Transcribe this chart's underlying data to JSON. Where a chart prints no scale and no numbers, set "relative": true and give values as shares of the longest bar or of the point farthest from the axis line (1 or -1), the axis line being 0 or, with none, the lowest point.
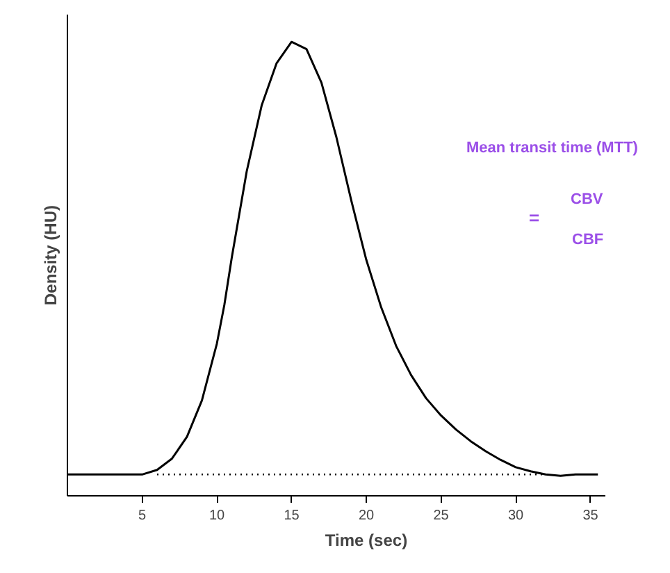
{
  "chart_data": {
    "type": "line",
    "relative": true,
    "xlabel": "Time (sec)",
    "ylabel": "Density (HU)",
    "xlim": [
      0,
      36
    ],
    "xticks": [
      5,
      10,
      15,
      20,
      25,
      30,
      35
    ],
    "annotations": [
      "Mean transit time (MTT)",
      "=",
      "CBV",
      "CBF"
    ],
    "series": [
      {
        "color": "#000000",
        "x": [
          0,
          5,
          6,
          7,
          8,
          9,
          10,
          10.5,
          11,
          12,
          13,
          14,
          15,
          16,
          17,
          18,
          19,
          20,
          21,
          22,
          23,
          24,
          25,
          26,
          27,
          28,
          29,
          30,
          31,
          32,
          33,
          34,
          35,
          35.5
        ],
        "values": [
          0.047,
          0.047,
          0.057,
          0.082,
          0.13,
          0.21,
          0.335,
          0.42,
          0.525,
          0.715,
          0.86,
          0.953,
          1.0,
          0.984,
          0.91,
          0.79,
          0.65,
          0.52,
          0.415,
          0.33,
          0.266,
          0.215,
          0.177,
          0.146,
          0.12,
          0.098,
          0.079,
          0.063,
          0.054,
          0.047,
          0.044,
          0.047,
          0.047,
          0.047
        ]
      },
      {
        "color": "#000000",
        "line_style": "dotted",
        "x": [
          6,
          32
        ],
        "values": [
          0.047,
          0.047
        ]
      }
    ]
  }
}
